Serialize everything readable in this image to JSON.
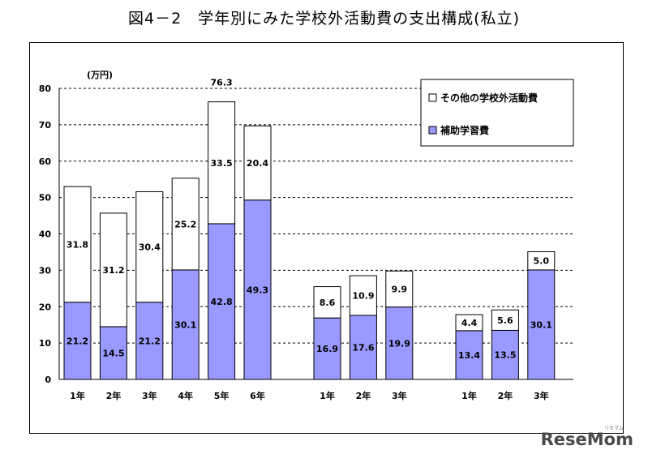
{
  "title": "図4－2　学年別にみた学校外活動費の支出構成(私立)",
  "watermark": "ReseMom",
  "watermark_kana": "リセマム",
  "colors": {
    "bottom": "#9999ff",
    "top": "#ffffff",
    "stroke": "#000000",
    "grid": "#000000"
  },
  "chart_data": {
    "type": "bar",
    "stacked": true,
    "title": "図4－2　学年別にみた学校外活動費の支出構成(私立)",
    "ylabel": "(万円)",
    "ylim": [
      0,
      80
    ],
    "yticks": [
      0,
      10,
      20,
      30,
      40,
      50,
      60,
      70,
      80
    ],
    "grid": true,
    "legend_position": "top-right",
    "categories": [
      "1年",
      "2年",
      "3年",
      "4年",
      "5年",
      "6年",
      "1年",
      "2年",
      "3年",
      "1年",
      "2年",
      "3年"
    ],
    "groups": [
      {
        "start": 0,
        "count": 6
      },
      {
        "start": 6,
        "count": 3
      },
      {
        "start": 9,
        "count": 3
      }
    ],
    "series": [
      {
        "name": "補助学習費",
        "values": [
          21.2,
          14.5,
          21.2,
          30.1,
          42.8,
          49.3,
          16.9,
          17.6,
          19.9,
          13.4,
          13.5,
          30.1
        ]
      },
      {
        "name": "その他の学校外活動費",
        "values": [
          31.8,
          31.2,
          30.4,
          25.2,
          33.5,
          20.4,
          8.6,
          10.9,
          9.9,
          4.4,
          5.6,
          5.0
        ]
      }
    ],
    "total_labels": [
      {
        "index": 4,
        "text": "76.3"
      }
    ]
  }
}
